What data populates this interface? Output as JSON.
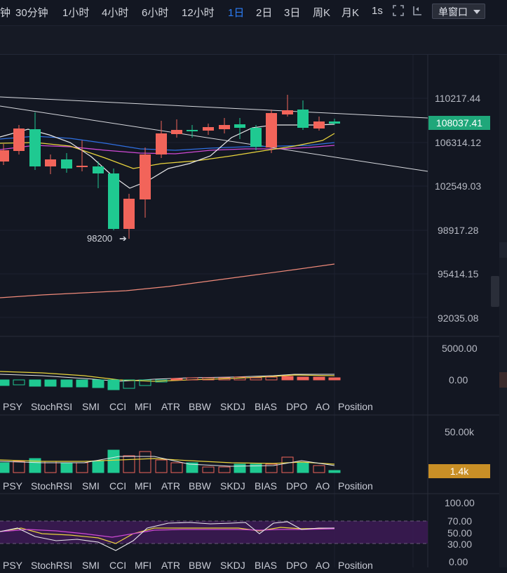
{
  "toolbar": {
    "timeframes": [
      "钟",
      "30分钟",
      "1小时",
      "4小时",
      "6小时",
      "12小时",
      "1日",
      "2日",
      "3日",
      "周K",
      "月K",
      "1s"
    ],
    "active_timeframe": "1日",
    "window_mode": "单窗口"
  },
  "price_axis": {
    "labels": [
      "110217.44",
      "106314.12",
      "102549.03",
      "98917.28",
      "95414.15",
      "92035.08"
    ],
    "current_price": "108037.41",
    "current_price_color": "#1fa77a"
  },
  "annotations": {
    "low_label": "98200"
  },
  "macd_axis": {
    "labels": [
      "5000.00",
      "0.00"
    ]
  },
  "volume_axis": {
    "labels": [
      "50.00k"
    ],
    "current_volume": "1.4k",
    "current_volume_color": "#c98f26"
  },
  "oscillator_axis": {
    "labels": [
      "100.00",
      "70.00",
      "50.00",
      "30.00",
      "0.00"
    ]
  },
  "indicator_tabs": [
    "PSY",
    "StochRSI",
    "SMI",
    "CCI",
    "MFI",
    "ATR",
    "BBW",
    "SKDJ",
    "BIAS",
    "DPO",
    "AO",
    "Position"
  ],
  "colors": {
    "up": "#1fc991",
    "down": "#f2645a",
    "background": "#131722"
  },
  "icons": [
    "expand-icon",
    "replay-icon",
    "grid-icon"
  ]
}
